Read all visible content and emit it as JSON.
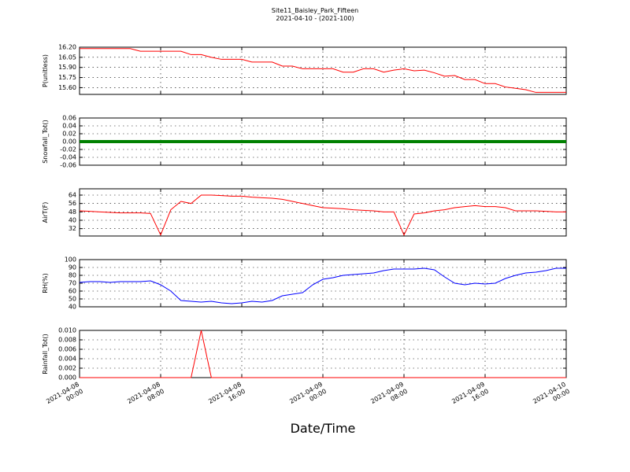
{
  "figure": {
    "title": "Site11_Baisley_Park_Fifteen",
    "subtitle": "2021-04-10 - (2021-100)",
    "xlabel": "Date/Time",
    "xlim": [
      "2021-04-08T00:00",
      "2021-04-10T00:00"
    ],
    "xticks": [
      {
        "value": "2021-04-08T00:00",
        "label": [
          "2021-04-08",
          "00:00"
        ]
      },
      {
        "value": "2021-04-08T08:00",
        "label": [
          "2021-04-08",
          "08:00"
        ]
      },
      {
        "value": "2021-04-08T16:00",
        "label": [
          "2021-04-08",
          "16:00"
        ]
      },
      {
        "value": "2021-04-09T00:00",
        "label": [
          "2021-04-09",
          "00:00"
        ]
      },
      {
        "value": "2021-04-09T08:00",
        "label": [
          "2021-04-09",
          "08:00"
        ]
      },
      {
        "value": "2021-04-09T16:00",
        "label": [
          "2021-04-09",
          "16:00"
        ]
      },
      {
        "value": "2021-04-10T00:00",
        "label": [
          "2021-04-10",
          "00:00"
        ]
      }
    ],
    "x": [
      "2021-04-08T00:00",
      "2021-04-08T01:00",
      "2021-04-08T02:00",
      "2021-04-08T03:00",
      "2021-04-08T04:00",
      "2021-04-08T05:00",
      "2021-04-08T06:00",
      "2021-04-08T07:00",
      "2021-04-08T08:00",
      "2021-04-08T09:00",
      "2021-04-08T10:00",
      "2021-04-08T11:00",
      "2021-04-08T12:00",
      "2021-04-08T13:00",
      "2021-04-08T14:00",
      "2021-04-08T15:00",
      "2021-04-08T16:00",
      "2021-04-08T17:00",
      "2021-04-08T18:00",
      "2021-04-08T19:00",
      "2021-04-08T20:00",
      "2021-04-08T21:00",
      "2021-04-08T22:00",
      "2021-04-08T23:00",
      "2021-04-09T00:00",
      "2021-04-09T01:00",
      "2021-04-09T02:00",
      "2021-04-09T03:00",
      "2021-04-09T04:00",
      "2021-04-09T05:00",
      "2021-04-09T06:00",
      "2021-04-09T07:00",
      "2021-04-09T08:00",
      "2021-04-09T09:00",
      "2021-04-09T10:00",
      "2021-04-09T11:00",
      "2021-04-09T12:00",
      "2021-04-09T13:00",
      "2021-04-09T14:00",
      "2021-04-09T15:00",
      "2021-04-09T16:00",
      "2021-04-09T17:00",
      "2021-04-09T18:00",
      "2021-04-09T19:00",
      "2021-04-09T20:00",
      "2021-04-09T21:00",
      "2021-04-09T22:00",
      "2021-04-09T23:00",
      "2021-04-10T00:00"
    ]
  },
  "chart_data": [
    {
      "type": "line",
      "ylabel": "P(unitless)",
      "color": "#ff0000",
      "grid": true,
      "ylim": [
        15.5,
        16.2
      ],
      "yticks": [
        {
          "value": 15.6,
          "label": "15.60"
        },
        15.75,
        {
          "value": 15.9,
          "label": "15.90"
        },
        16.05,
        {
          "value": 16.2,
          "label": "16.20"
        }
      ],
      "values": [
        16.18,
        16.18,
        16.18,
        16.18,
        16.18,
        16.18,
        16.14,
        16.14,
        16.14,
        16.14,
        16.14,
        16.09,
        16.09,
        16.05,
        16.02,
        16.02,
        16.02,
        15.98,
        15.98,
        15.98,
        15.92,
        15.92,
        15.88,
        15.88,
        15.88,
        15.88,
        15.83,
        15.83,
        15.88,
        15.88,
        15.83,
        15.86,
        15.88,
        15.85,
        15.86,
        15.82,
        15.77,
        15.78,
        15.72,
        15.72,
        15.66,
        15.66,
        15.61,
        15.59,
        15.57,
        15.53,
        15.53,
        15.53,
        15.53
      ]
    },
    {
      "type": "line",
      "ylabel": "Snowfall_Tot()",
      "color": "#008000",
      "grid": true,
      "markers": true,
      "ylim": [
        -0.06,
        0.06
      ],
      "yticks": [
        -0.06,
        -0.04,
        -0.02,
        {
          "value": 0,
          "label": "0.00"
        },
        0.02,
        0.04,
        0.06
      ],
      "values": [
        0,
        0,
        0,
        0,
        0,
        0,
        0,
        0,
        0,
        0,
        0,
        0,
        0,
        0,
        0,
        0,
        0,
        0,
        0,
        0,
        0,
        0,
        0,
        0,
        0,
        0,
        0,
        0,
        0,
        0,
        0,
        0,
        0,
        0,
        0,
        0,
        0,
        0,
        0,
        0,
        0,
        0,
        0,
        0,
        0,
        0,
        0,
        0,
        0
      ]
    },
    {
      "type": "line",
      "ylabel": "AirT(F)",
      "color": "#ff0000",
      "grid": true,
      "ylim": [
        25,
        70
      ],
      "yticks": [
        32,
        40,
        48,
        56,
        64
      ],
      "values": [
        49,
        48.5,
        48,
        47.5,
        47,
        47,
        47,
        46.5,
        26,
        50,
        58,
        56,
        64,
        64,
        63.5,
        63,
        63,
        62,
        61.5,
        61,
        60,
        58,
        56,
        54,
        52,
        51.5,
        51,
        50,
        49.5,
        49,
        48,
        48,
        26,
        46,
        47,
        49,
        50,
        52,
        53,
        54,
        53,
        53,
        52,
        49,
        49,
        49,
        48.5,
        48,
        48
      ]
    },
    {
      "type": "line",
      "ylabel": "RH(%)",
      "color": "#0000ff",
      "grid": true,
      "ylim": [
        40,
        100
      ],
      "yticks": [
        40,
        50,
        60,
        70,
        80,
        90,
        100
      ],
      "values": [
        71,
        72,
        72,
        71,
        72,
        72,
        72,
        73,
        68,
        60,
        48,
        47,
        46,
        47,
        45,
        44,
        45,
        47,
        46,
        48,
        54,
        56,
        58,
        68,
        75,
        77,
        80,
        81,
        82,
        83,
        86,
        88,
        88,
        88,
        89,
        87,
        78,
        70,
        68,
        70,
        69,
        70,
        76,
        80,
        83,
        84,
        86,
        89,
        89
      ]
    },
    {
      "type": "line",
      "ylabel": "Rainfall_Tot()",
      "color": "#ff0000",
      "grid": true,
      "ylim": [
        0,
        0.01
      ],
      "yticks": [
        {
          "value": 0,
          "label": "0.000"
        },
        {
          "value": 0.002,
          "label": "0.002"
        },
        {
          "value": 0.004,
          "label": "0.004"
        },
        {
          "value": 0.006,
          "label": "0.006"
        },
        {
          "value": 0.008,
          "label": "0.008"
        },
        {
          "value": 0.01,
          "label": "0.010"
        }
      ],
      "values": [
        0,
        0,
        0,
        0,
        0,
        0,
        0,
        0,
        0,
        0,
        0,
        0,
        0.01,
        0,
        0,
        0,
        0,
        0,
        0,
        0,
        0,
        0,
        0,
        0,
        0,
        0,
        0,
        0,
        0,
        0,
        0,
        0,
        0,
        0,
        0,
        0,
        0,
        0,
        0,
        0,
        0,
        0,
        0,
        0,
        0,
        0,
        0,
        0,
        0
      ]
    }
  ]
}
